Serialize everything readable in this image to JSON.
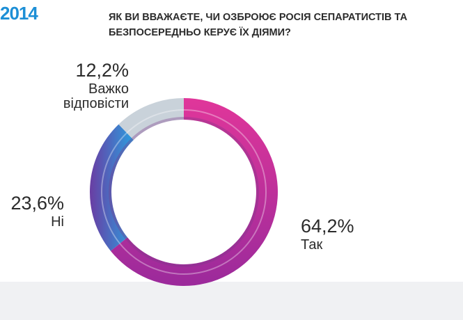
{
  "header": {
    "year": "2014",
    "question_lines": [
      "Як ви вважаєте, чи озброює Росія сепаратистів та",
      "безпосередньо керує їх діями?"
    ]
  },
  "chart_data": {
    "type": "pie",
    "variant": "donut",
    "title": "",
    "slices": [
      {
        "name": "Так",
        "value": 64.2,
        "label": "64,2%",
        "color": "#e0369a",
        "color_end": "#9b2a9b"
      },
      {
        "name": "Ні",
        "value": 23.6,
        "label": "23,6%",
        "color": "#2a9fe0",
        "color_end": "#6a3da3"
      },
      {
        "name": "Важко відповісти",
        "label_lines": [
          "Важко",
          "відповісти"
        ],
        "value": 12.2,
        "label": "12,2%",
        "color": "#c9d2da",
        "color_end": "#c9d2da"
      }
    ]
  }
}
